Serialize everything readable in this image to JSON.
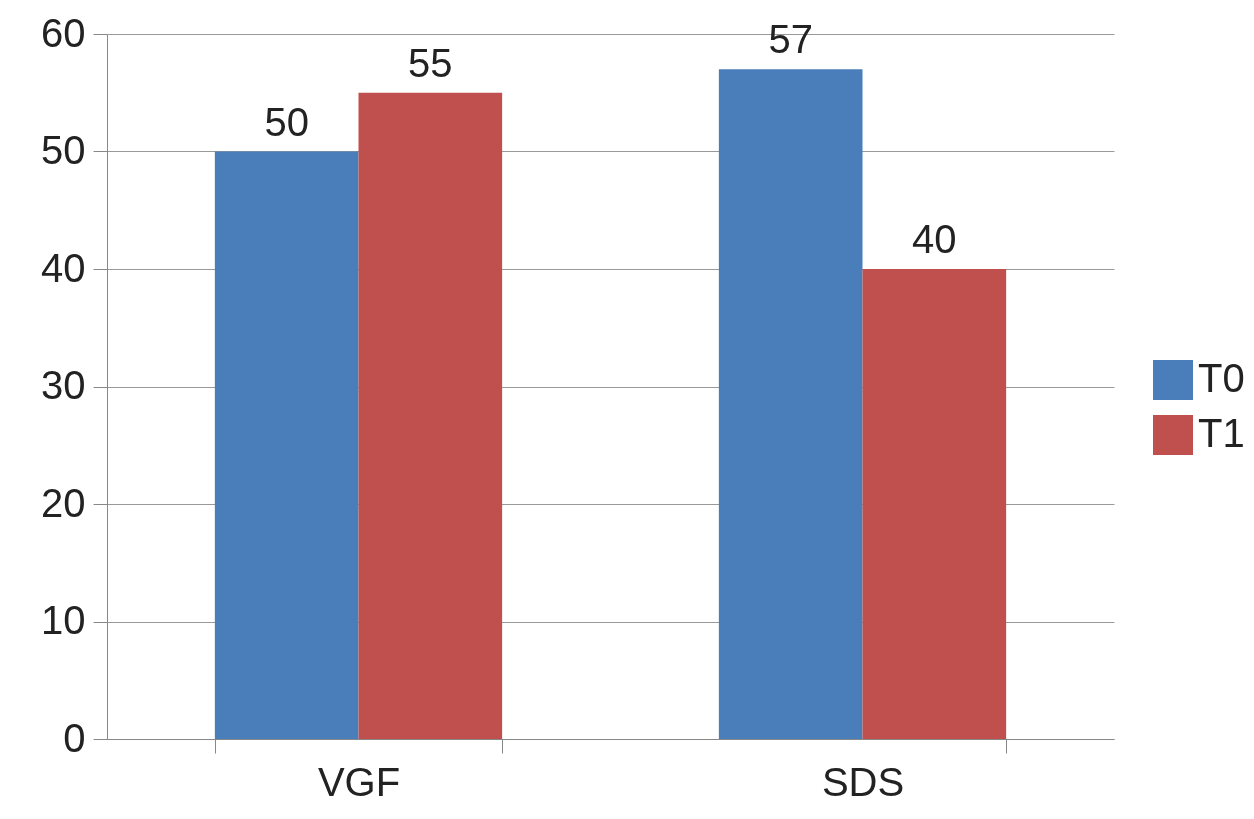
{
  "chart_data": {
    "type": "bar",
    "categories": [
      "VGF",
      "SDS"
    ],
    "series": [
      {
        "name": "T0",
        "color": "#4a7ebb",
        "values": [
          50,
          57
        ]
      },
      {
        "name": "T1",
        "color": "#c0504d",
        "values": [
          55,
          40
        ]
      }
    ],
    "ylim": [
      0,
      60
    ],
    "yticks": [
      0,
      10,
      20,
      30,
      40,
      50,
      60
    ],
    "grid": "y",
    "legend": "right",
    "data_labels": true
  }
}
